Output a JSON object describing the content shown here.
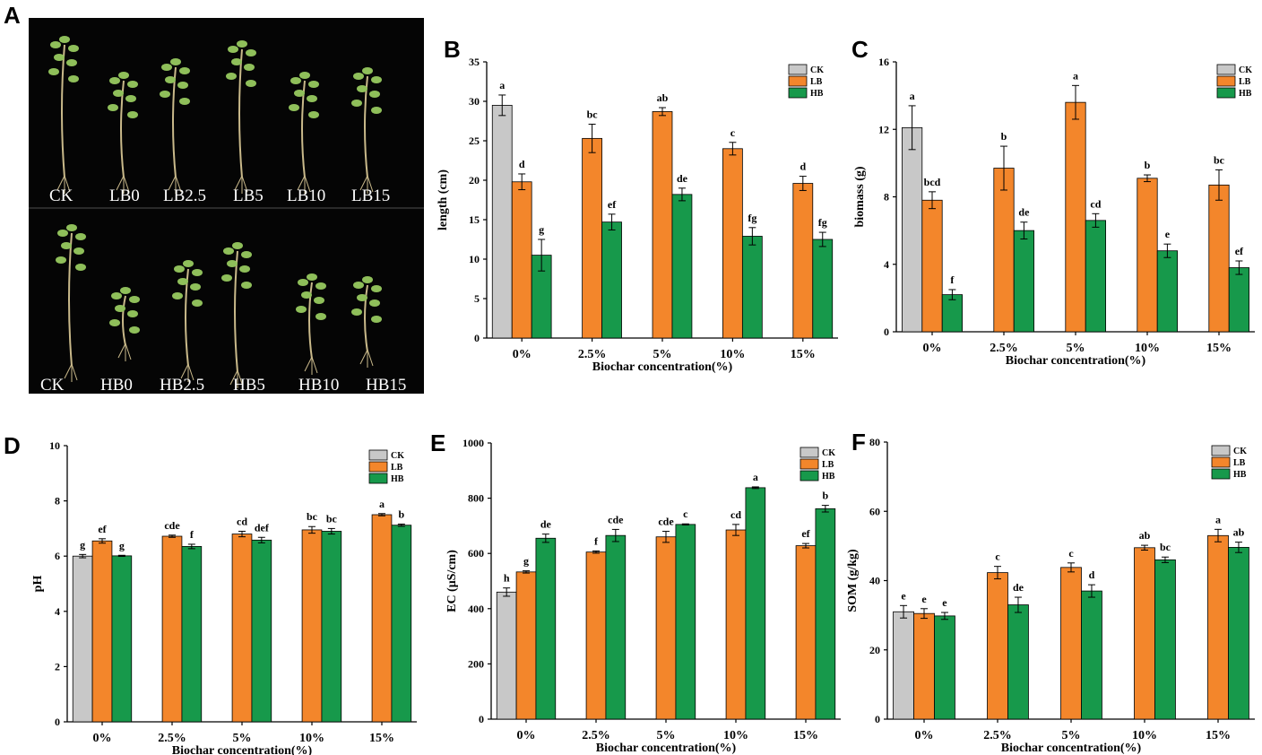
{
  "colors": {
    "CK": "#c8c8c8",
    "LB": "#f3862b",
    "HB": "#17994b",
    "photo_bg": "#050505",
    "stem": "#c9b98a",
    "leaf": "#8fbf5a"
  },
  "photo": {
    "panel_label": "A",
    "top_labels": [
      "CK",
      "LB0",
      "LB2.5",
      "LB5",
      "LB10",
      "LB15"
    ],
    "bottom_labels": [
      "CK",
      "HB0",
      "HB2.5",
      "HB5",
      "HB10",
      "HB15"
    ]
  },
  "chart_data": [
    {
      "panel": "B",
      "type": "bar",
      "categories": [
        "0%",
        "2.5%",
        "5%",
        "10%",
        "15%"
      ],
      "xlabel": "Biochar concentration(%)",
      "ylabel": "length (cm)",
      "ylim": [
        0,
        35
      ],
      "yticks": [
        0,
        5,
        10,
        15,
        20,
        25,
        30,
        35
      ],
      "legend": [
        "CK",
        "LB",
        "HB"
      ],
      "series": [
        {
          "name": "CK",
          "values": [
            29.5,
            null,
            null,
            null,
            null
          ],
          "errors": [
            1.3,
            null,
            null,
            null,
            null
          ],
          "labels": [
            "a",
            "",
            "",
            "",
            ""
          ]
        },
        {
          "name": "LB",
          "values": [
            19.8,
            25.3,
            28.7,
            24.0,
            19.6
          ],
          "errors": [
            1.0,
            1.8,
            0.5,
            0.8,
            0.9
          ],
          "labels": [
            "d",
            "bc",
            "ab",
            "c",
            "d"
          ]
        },
        {
          "name": "HB",
          "values": [
            10.5,
            14.7,
            18.2,
            12.9,
            12.5
          ],
          "errors": [
            2.0,
            1.0,
            0.8,
            1.1,
            0.9
          ],
          "labels": [
            "g",
            "ef",
            "de",
            "fg",
            "fg"
          ]
        }
      ]
    },
    {
      "panel": "C",
      "type": "bar",
      "categories": [
        "0%",
        "2.5%",
        "5%",
        "10%",
        "15%"
      ],
      "xlabel": "Biochar concentration(%)",
      "ylabel": "biomass (g)",
      "ylim": [
        0,
        16
      ],
      "yticks": [
        0,
        4,
        8,
        12,
        16
      ],
      "legend": [
        "CK",
        "LB",
        "HB"
      ],
      "series": [
        {
          "name": "CK",
          "values": [
            12.1,
            null,
            null,
            null,
            null
          ],
          "errors": [
            1.3,
            null,
            null,
            null,
            null
          ],
          "labels": [
            "a",
            "",
            "",
            "",
            ""
          ]
        },
        {
          "name": "LB",
          "values": [
            7.8,
            9.7,
            13.6,
            9.1,
            8.7
          ],
          "errors": [
            0.5,
            1.3,
            1.0,
            0.2,
            0.9
          ],
          "labels": [
            "bcd",
            "b",
            "a",
            "b",
            "bc"
          ]
        },
        {
          "name": "HB",
          "values": [
            2.2,
            6.0,
            6.6,
            4.8,
            3.8
          ],
          "errors": [
            0.3,
            0.5,
            0.4,
            0.4,
            0.4
          ],
          "labels": [
            "f",
            "de",
            "cd",
            "e",
            "ef"
          ]
        }
      ]
    },
    {
      "panel": "D",
      "type": "bar",
      "categories": [
        "0%",
        "2.5%",
        "5%",
        "10%",
        "15%"
      ],
      "xlabel": "Biochar concentration(%)",
      "ylabel": "pH",
      "ylim": [
        0,
        10
      ],
      "yticks": [
        0,
        2,
        4,
        6,
        8,
        10
      ],
      "legend": [
        "CK",
        "LB",
        "HB"
      ],
      "series": [
        {
          "name": "CK",
          "values": [
            6.0,
            null,
            null,
            null,
            null
          ],
          "errors": [
            0.06,
            null,
            null,
            null,
            null
          ],
          "labels": [
            "g",
            "",
            "",
            "",
            ""
          ]
        },
        {
          "name": "LB",
          "values": [
            6.55,
            6.72,
            6.8,
            6.95,
            7.5
          ],
          "errors": [
            0.08,
            0.04,
            0.1,
            0.12,
            0.04
          ],
          "labels": [
            "ef",
            "cde",
            "cd",
            "bc",
            "a"
          ]
        },
        {
          "name": "HB",
          "values": [
            6.01,
            6.35,
            6.58,
            6.9,
            7.12
          ],
          "errors": [
            0.02,
            0.08,
            0.1,
            0.1,
            0.04
          ],
          "labels": [
            "g",
            "f",
            "def",
            "bc",
            "b"
          ]
        }
      ]
    },
    {
      "panel": "E",
      "type": "bar",
      "categories": [
        "0%",
        "2.5%",
        "5%",
        "10%",
        "15%"
      ],
      "xlabel": "Biochar concentration(%)",
      "ylabel": "EC (μS/cm)",
      "ylim": [
        0,
        1000
      ],
      "yticks": [
        0,
        200,
        400,
        600,
        800,
        1000
      ],
      "legend": [
        "CK",
        "LB",
        "HB"
      ],
      "series": [
        {
          "name": "CK",
          "values": [
            460,
            null,
            null,
            null,
            null
          ],
          "errors": [
            15,
            null,
            null,
            null,
            null
          ],
          "labels": [
            "h",
            "",
            "",
            "",
            ""
          ]
        },
        {
          "name": "LB",
          "values": [
            533,
            605,
            660,
            685,
            628
          ],
          "errors": [
            4,
            4,
            20,
            20,
            8
          ],
          "labels": [
            "g",
            "f",
            "cde",
            "cd",
            "ef"
          ]
        },
        {
          "name": "HB",
          "values": [
            655,
            665,
            705,
            838,
            762
          ],
          "errors": [
            15,
            22,
            2,
            3,
            12
          ],
          "labels": [
            "de",
            "cde",
            "c",
            "a",
            "b"
          ]
        }
      ]
    },
    {
      "panel": "F",
      "type": "bar",
      "categories": [
        "0%",
        "2.5%",
        "5%",
        "10%",
        "15%"
      ],
      "xlabel": "Biochar concentration(%)",
      "ylabel": "SOM (g/kg)",
      "ylim": [
        0,
        80
      ],
      "yticks": [
        0,
        20,
        40,
        60,
        80
      ],
      "legend": [
        "CK",
        "LB",
        "HB"
      ],
      "series": [
        {
          "name": "CK",
          "values": [
            31,
            null,
            null,
            null,
            null
          ],
          "errors": [
            1.8,
            null,
            null,
            null,
            null
          ],
          "labels": [
            "e",
            "",
            "",
            "",
            ""
          ]
        },
        {
          "name": "LB",
          "values": [
            30.5,
            42.3,
            43.8,
            49.5,
            53.0
          ],
          "errors": [
            1.4,
            1.8,
            1.3,
            0.7,
            1.8
          ],
          "labels": [
            "e",
            "c",
            "c",
            "ab",
            "a"
          ]
        },
        {
          "name": "HB",
          "values": [
            29.8,
            33.0,
            37.0,
            46.0,
            49.6
          ],
          "errors": [
            1.0,
            2.2,
            1.8,
            0.8,
            1.5
          ],
          "labels": [
            "e",
            "de",
            "d",
            "bc",
            "ab"
          ]
        }
      ]
    }
  ]
}
